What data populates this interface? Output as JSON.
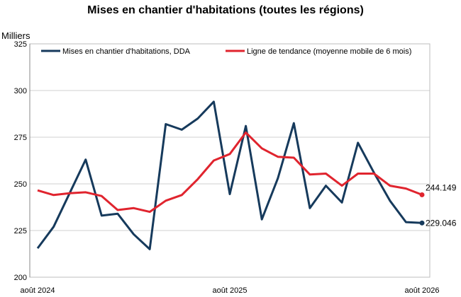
{
  "chart_data": {
    "type": "line",
    "title": "Mises en chantier d'habitations (toutes les régions)",
    "ylabel": "Milliers",
    "xlabel": "",
    "ylim": [
      200,
      325
    ],
    "yticks": [
      200,
      225,
      250,
      275,
      300,
      325
    ],
    "x_tick_labels": [
      "août 2024",
      "août 2025",
      "août 2026"
    ],
    "grid": true,
    "legend_position": "top",
    "series": [
      {
        "name": "Mises en chantier d'habitations, DDA",
        "color": "#163a5c",
        "end_label": "229.046",
        "values": [
          215.5,
          227,
          245,
          263,
          233,
          234,
          223,
          215,
          282,
          279,
          285,
          294,
          244.5,
          281,
          231,
          253,
          282.5,
          237,
          249,
          240,
          272,
          256,
          241,
          229.5,
          229.046
        ]
      },
      {
        "name": "Ligne de tendance (moyenne mobile de 6 mois)",
        "color": "#e0242e",
        "end_label": "244.149",
        "values": [
          246.5,
          244,
          245,
          245.5,
          243.5,
          236,
          237,
          235,
          241,
          244,
          252.5,
          262.5,
          266,
          277.5,
          269,
          264.5,
          264,
          255,
          255.5,
          249,
          255.5,
          255.5,
          249,
          247.5,
          244.149
        ]
      }
    ]
  }
}
